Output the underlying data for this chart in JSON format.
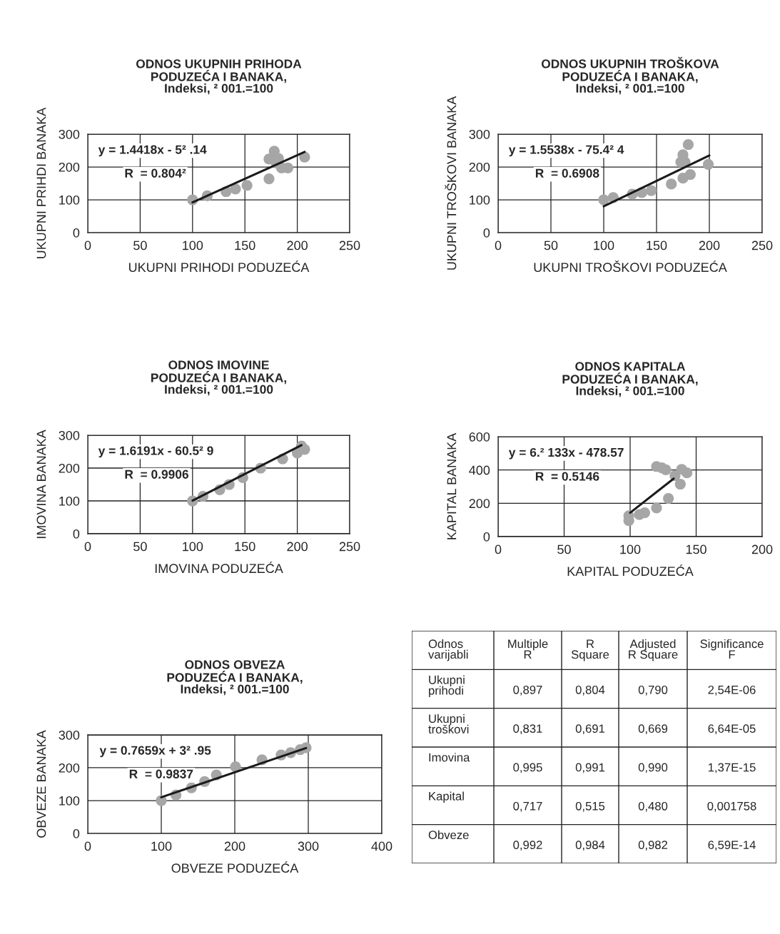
{
  "chart_data": [
    {
      "type": "scatter",
      "title": "ODNOS UKUPNIH PRIHODA\nPODUZEĆA I BANAKA,\nIndeksi, ² 001.=100",
      "xlabel": "UKUPNI PRIHODI PODUZEĆA",
      "ylabel": "UKUPNI PRIHDI BANAKA",
      "xlim": [
        0,
        250
      ],
      "xticks": [
        0,
        50,
        100,
        150,
        200,
        250
      ],
      "ylim": [
        0,
        300
      ],
      "yticks": [
        0,
        100,
        200,
        300
      ],
      "grid": true,
      "marker": "circle",
      "annotations": [
        "y = 1.4418x - 5² .14",
        "R  = 0.804²"
      ],
      "series": [
        {
          "type": "scatter",
          "color": "#a6a6a6",
          "x": [
            100,
            114,
            132,
            141,
            152,
            173,
            178,
            173,
            182,
            180,
            185,
            191,
            207
          ],
          "values": [
            100,
            112,
            125,
            133,
            144,
            164,
            248,
            224,
            226,
            212,
            197,
            197,
            230
          ]
        },
        {
          "type": "line",
          "color": "#1a1a1a",
          "marker": "none",
          "line_style": "solid",
          "x": [
            100,
            207
          ],
          "values": [
            92,
            246
          ]
        }
      ]
    },
    {
      "type": "scatter",
      "title": "ODNOS UKUPNIH TROŠKOVA\nPODUZEĆA I BANAKA,\nIndeksi, ² 001.=100",
      "xlabel": "UKUPNI TROŠKOVI PODUZEĆA",
      "ylabel": "UKUPNI TROŠKOVI BANAKA",
      "xlim": [
        0,
        250
      ],
      "xticks": [
        0,
        50,
        100,
        150,
        200,
        250
      ],
      "ylim": [
        0,
        300
      ],
      "yticks": [
        0,
        100,
        200,
        300
      ],
      "grid": true,
      "marker": "circle",
      "annotations": [
        "y = 1.5538x - 75.4² 4",
        "R  = 0.6908"
      ],
      "series": [
        {
          "type": "scatter",
          "color": "#a6a6a6",
          "x": [
            100,
            109,
            127,
            136,
            145,
            164,
            175,
            182,
            180,
            175,
            173,
            177,
            199
          ],
          "values": [
            100,
            107,
            117,
            122,
            128,
            148,
            166,
            177,
            268,
            237,
            215,
            215,
            208
          ]
        },
        {
          "type": "line",
          "color": "#1a1a1a",
          "marker": "none",
          "line_style": "solid",
          "x": [
            100,
            200
          ],
          "values": [
            80,
            235
          ]
        }
      ]
    },
    {
      "type": "scatter",
      "title": "ODNOS IMOVINE\nPODUZEĆA I BANAKA,\nIndeksi, ² 001.=100",
      "xlabel": "IMOVINA PODUZEĆA",
      "ylabel": "IMOVINA BANAKA",
      "xlim": [
        0,
        250
      ],
      "xticks": [
        0,
        50,
        100,
        150,
        200,
        250
      ],
      "ylim": [
        0,
        300
      ],
      "yticks": [
        0,
        100,
        200,
        300
      ],
      "grid": true,
      "marker": "circle",
      "annotations": [
        "y = 1.6191x - 60.5² 9",
        "R  = 0.9906"
      ],
      "series": [
        {
          "type": "scatter",
          "color": "#a6a6a6",
          "x": [
            100,
            110,
            126,
            135,
            148,
            165,
            186,
            200,
            204,
            207
          ],
          "values": [
            100,
            114,
            134,
            150,
            171,
            200,
            228,
            246,
            267,
            257
          ]
        },
        {
          "type": "line",
          "color": "#1a1a1a",
          "marker": "none",
          "line_style": "solid",
          "x": [
            100,
            204
          ],
          "values": [
            101,
            270
          ]
        }
      ]
    },
    {
      "type": "scatter",
      "title": "ODNOS KAPITALA\nPODUZEĆA I BANAKA,\nIndeksi, ² 001.=100",
      "xlabel": "KAPITAL PODUZEĆA",
      "ylabel": "KAPITAL BANAKA",
      "xlim": [
        0,
        200
      ],
      "xticks": [
        0,
        50,
        100,
        150,
        200
      ],
      "ylim": [
        0,
        600
      ],
      "yticks": [
        0,
        200,
        400,
        600
      ],
      "grid": true,
      "marker": "circle",
      "annotations": [
        "y = 6.² 133x - 478.57",
        "R  = 0.5146"
      ],
      "series": [
        {
          "type": "scatter",
          "color": "#a6a6a6",
          "x": [
            99,
            99,
            107,
            111,
            120,
            129,
            138,
            134,
            139,
            143,
            120,
            124,
            127
          ],
          "values": [
            125,
            96,
            132,
            143,
            172,
            229,
            315,
            366,
            404,
            383,
            421,
            413,
            401
          ]
        },
        {
          "type": "line",
          "color": "#1a1a1a",
          "marker": "none",
          "line_style": "solid",
          "x": [
            100,
            133
          ],
          "values": [
            143,
            348
          ]
        }
      ]
    },
    {
      "type": "scatter",
      "title": "ODNOS OBVEZA\nPODUZEĆA I BANAKA,\nIndeksi, ² 001.=100",
      "xlabel": "OBVEZE PODUZEĆA",
      "ylabel": "OBVEZE BANAKA",
      "xlim": [
        0,
        400
      ],
      "xticks": [
        0,
        100,
        200,
        300,
        400
      ],
      "ylim": [
        0,
        300
      ],
      "yticks": [
        0,
        100,
        200,
        300
      ],
      "grid": true,
      "marker": "circle",
      "annotations": [
        "y = 0.7659x + 3² .95",
        "R  = 0.9837"
      ],
      "series": [
        {
          "type": "scatter",
          "color": "#a6a6a6",
          "x": [
            100,
            120,
            141,
            159,
            175,
            201,
            237,
            263,
            276,
            289,
            297
          ],
          "values": [
            100,
            117,
            139,
            158,
            178,
            203,
            224,
            239,
            246,
            255,
            261
          ]
        },
        {
          "type": "line",
          "color": "#1a1a1a",
          "marker": "none",
          "line_style": "solid",
          "x": [
            100,
            297
          ],
          "values": [
            110,
            260
          ]
        }
      ]
    },
    {
      "type": "other",
      "categories": [
        "Odnos\nvarijabli",
        "Multiple\nR",
        "R\nSquare",
        "Adjusted\nR Square",
        "Significance\nF"
      ],
      "y_categories": [
        "Ukupni\nprihodi",
        "Ukupni\ntroškovi",
        "Imovina",
        "Kapital",
        "Obveze"
      ],
      "cell_labels": [
        [
          "0,897",
          "0,804",
          "0,790",
          "2,54E-06"
        ],
        [
          "0,831",
          "0,691",
          "0,669",
          "6,64E-05"
        ],
        [
          "0,995",
          "0,991",
          "0,990",
          "1,37E-15"
        ],
        [
          "0,717",
          "0,515",
          "0,480",
          "0,001758"
        ],
        [
          "0,992",
          "0,984",
          "0,982",
          "6,59E-14"
        ]
      ]
    }
  ]
}
